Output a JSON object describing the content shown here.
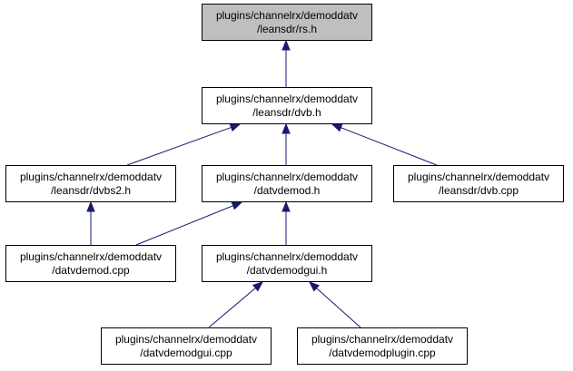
{
  "colors": {
    "highlight_fill": "#bfbfbf",
    "node_fill": "#ffffff",
    "edge": "#191970"
  },
  "nodes": [
    {
      "id": "rs",
      "line1": "plugins/channelrx/demoddatv",
      "line2": "/leansdr/rs.h",
      "highlight": true
    },
    {
      "id": "dvb",
      "line1": "plugins/channelrx/demoddatv",
      "line2": "/leansdr/dvb.h",
      "highlight": false
    },
    {
      "id": "dvbs2",
      "line1": "plugins/channelrx/demoddatv",
      "line2": "/leansdr/dvbs2.h",
      "highlight": false
    },
    {
      "id": "datvdemod_h",
      "line1": "plugins/channelrx/demoddatv",
      "line2": "/datvdemod.h",
      "highlight": false
    },
    {
      "id": "dvb_cpp",
      "line1": "plugins/channelrx/demoddatv",
      "line2": "/leansdr/dvb.cpp",
      "highlight": false
    },
    {
      "id": "datvdemod_cpp",
      "line1": "plugins/channelrx/demoddatv",
      "line2": "/datvdemod.cpp",
      "highlight": false
    },
    {
      "id": "datvdemodgui_h",
      "line1": "plugins/channelrx/demoddatv",
      "line2": "/datvdemodgui.h",
      "highlight": false
    },
    {
      "id": "datvdemodgui_cpp",
      "line1": "plugins/channelrx/demoddatv",
      "line2": "/datvdemodgui.cpp",
      "highlight": false
    },
    {
      "id": "datvdemodplugin_cpp",
      "line1": "plugins/channelrx/demoddatv",
      "line2": "/datvdemodplugin.cpp",
      "highlight": false
    }
  ],
  "edges": [
    {
      "from": "dvb",
      "to": "rs"
    },
    {
      "from": "dvbs2",
      "to": "dvb"
    },
    {
      "from": "datvdemod_h",
      "to": "dvb"
    },
    {
      "from": "dvb_cpp",
      "to": "dvb"
    },
    {
      "from": "datvdemod_cpp",
      "to": "dvbs2"
    },
    {
      "from": "datvdemod_cpp",
      "to": "datvdemod_h"
    },
    {
      "from": "datvdemodgui_h",
      "to": "datvdemod_h"
    },
    {
      "from": "datvdemodgui_cpp",
      "to": "datvdemodgui_h"
    },
    {
      "from": "datvdemodplugin_cpp",
      "to": "datvdemodgui_h"
    }
  ]
}
